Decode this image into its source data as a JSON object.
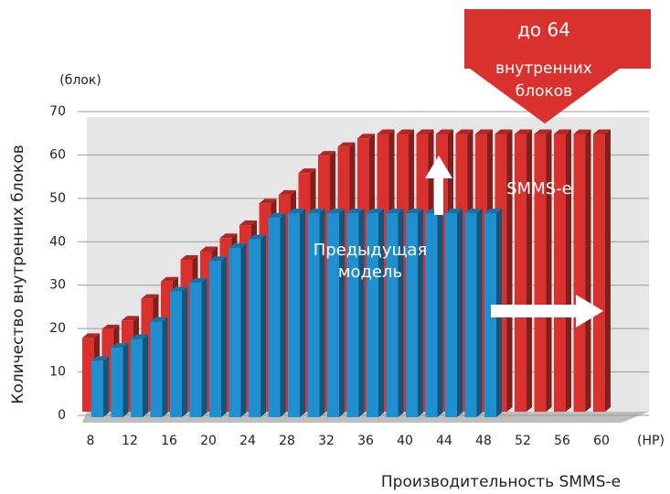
{
  "chart_data": {
    "type": "bar",
    "y_label": "Количество внутренних блоков",
    "y_unit": "(блок)",
    "x_label": "Производительность SMMS-e",
    "x_unit": "(HP)",
    "annotation": [
      "до 64",
      "внутренних",
      "блоков"
    ],
    "categories": [
      "8",
      null,
      "12",
      null,
      "16",
      null,
      "20",
      null,
      "24",
      null,
      "28",
      null,
      "32",
      null,
      "36",
      null,
      "40",
      null,
      "44",
      null,
      "48",
      null,
      "52",
      null,
      "56",
      null,
      "60"
    ],
    "series": [
      {
        "name": "SMMS-e",
        "color": "#d9322e",
        "values": [
          17,
          19,
          21,
          26,
          30,
          35,
          37,
          40,
          43,
          48,
          50,
          55,
          59,
          61,
          63,
          64,
          64,
          64,
          64,
          64,
          64,
          64,
          64,
          64,
          64,
          64,
          64
        ]
      },
      {
        "name": "Предыдущая модель",
        "color": "#1f8fcf",
        "values": [
          13,
          16,
          18,
          22,
          29,
          31,
          36,
          39,
          41,
          46,
          47,
          47,
          47,
          47,
          47,
          47,
          47,
          47,
          47,
          47,
          47,
          null,
          null,
          null,
          null,
          null,
          null
        ]
      }
    ],
    "ylim": [
      0,
      70
    ],
    "yticks": [
      0,
      10,
      20,
      30,
      40,
      50,
      60,
      70
    ],
    "grid": true
  }
}
